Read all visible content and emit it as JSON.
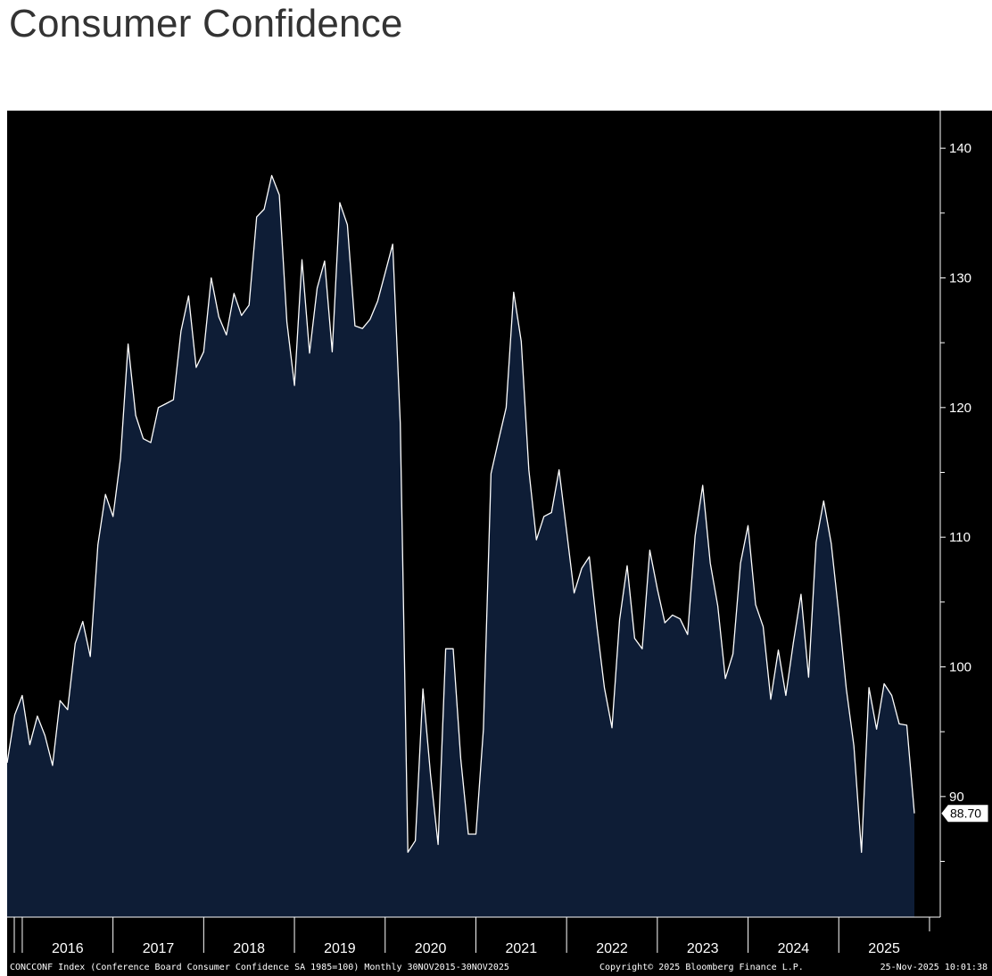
{
  "page_title": "Consumer Confidence",
  "chart_data": {
    "type": "area",
    "title": "Consumer Confidence",
    "series_name": "CONCCONF Index",
    "y_ticks": [
      90,
      100,
      110,
      120,
      130,
      140
    ],
    "y_tick_labels": [
      "90",
      "100",
      "110",
      "120",
      "130",
      "140"
    ],
    "ylim": [
      80.7,
      142.9
    ],
    "x_start": "2015-11",
    "x_end": "2025-11",
    "year_labels": [
      "2016",
      "2017",
      "2018",
      "2019",
      "2020",
      "2021",
      "2022",
      "2023",
      "2024",
      "2025"
    ],
    "last_value_label": "88.70",
    "footer_left": "CONCCONF Index (Conference Board Consumer Confidence SA 1985=100) Monthly 30NOV2015-30NOV2025",
    "footer_center": "Copyright© 2025 Bloomberg Finance L.P.",
    "footer_right": "25-Nov-2025 10:01:38",
    "colors": {
      "background": "#000000",
      "fill": "#0e1d36",
      "line": "#ffffff",
      "axis": "#ffffff"
    },
    "values": [
      92.6,
      96.3,
      97.8,
      94.0,
      96.2,
      94.7,
      92.4,
      97.4,
      96.7,
      101.8,
      103.5,
      100.8,
      109.4,
      113.3,
      111.6,
      116.1,
      124.9,
      119.4,
      117.6,
      117.3,
      120.0,
      120.3,
      120.6,
      125.9,
      128.6,
      123.1,
      124.3,
      130.0,
      127.0,
      125.6,
      128.8,
      127.1,
      127.9,
      134.7,
      135.3,
      137.9,
      136.4,
      126.6,
      121.7,
      131.4,
      124.2,
      129.2,
      131.3,
      124.3,
      135.8,
      134.1,
      126.3,
      126.1,
      126.8,
      128.2,
      130.4,
      132.6,
      118.8,
      85.7,
      86.6,
      98.3,
      91.7,
      86.3,
      101.4,
      101.4,
      92.9,
      87.1,
      87.1,
      95.2,
      114.9,
      117.5,
      120.0,
      128.9,
      125.1,
      115.2,
      109.8,
      111.6,
      111.9,
      115.2,
      110.5,
      105.7,
      107.6,
      108.5,
      103.2,
      98.4,
      95.3,
      103.6,
      107.8,
      102.2,
      101.4,
      109.0,
      106.0,
      103.4,
      104.0,
      103.7,
      102.5,
      110.1,
      114.0,
      108.0,
      104.7,
      99.1,
      101.0,
      108.0,
      110.9,
      104.8,
      103.1,
      97.5,
      101.3,
      97.8,
      101.9,
      105.6,
      99.2,
      109.6,
      112.8,
      109.5,
      104.1,
      98.3,
      93.9,
      85.7,
      98.4,
      95.2,
      98.7,
      97.8,
      95.6,
      95.5,
      88.7
    ]
  }
}
